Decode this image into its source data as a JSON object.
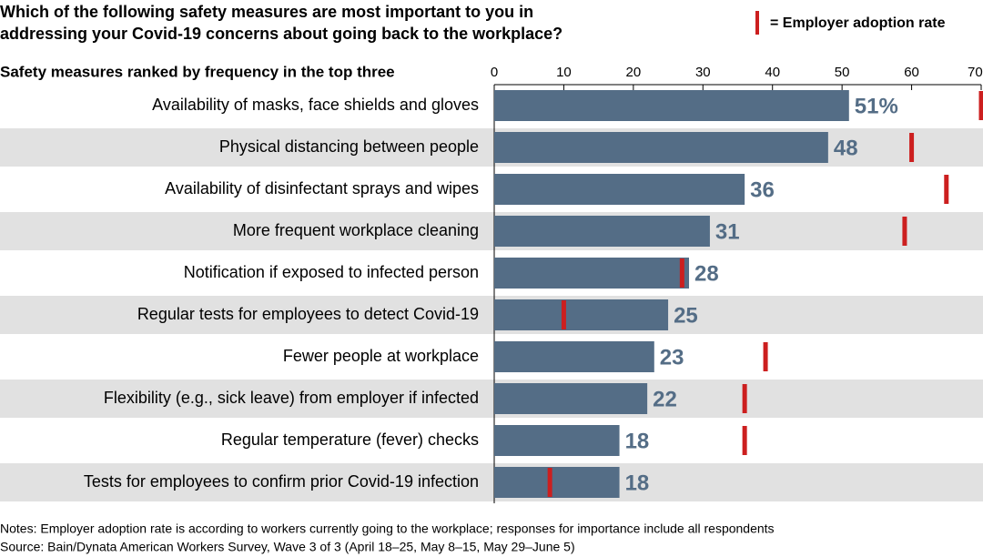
{
  "chart_data": {
    "type": "bar",
    "orientation": "horizontal",
    "title": [
      "Which of the following safety measures are most important to you in",
      "addressing your Covid-19 concerns about going back to the workplace?"
    ],
    "subtitle": "Safety measures ranked by frequency in the top three",
    "categories": [
      "Availability of masks, face shields and gloves",
      "Physical distancing between people",
      "Availability of disinfectant sprays and wipes",
      "More frequent workplace cleaning",
      "Notification if exposed to infected person",
      "Regular tests for employees to detect Covid-19",
      "Fewer people at workplace",
      "Flexibility (e.g., sick leave) from employer if infected",
      "Regular temperature (fever) checks",
      "Tests for employees to confirm prior Covid-19 infection"
    ],
    "series": [
      {
        "color": "#546d86",
        "values": [
          51,
          48,
          36,
          31,
          28,
          25,
          23,
          22,
          18,
          18
        ],
        "value_labels": [
          "51%",
          "48",
          "36",
          "31",
          "28",
          "25",
          "23",
          "22",
          "18",
          "18"
        ]
      },
      {
        "name": "= Employer adoption rate",
        "color": "#cc1f1f",
        "values": [
          70,
          60,
          65,
          59,
          27,
          10,
          39,
          36,
          36,
          8
        ]
      }
    ],
    "xlim": [
      0,
      70
    ],
    "xticks": [
      0,
      10,
      20,
      30,
      40,
      50,
      60,
      {
        "value": 70,
        "label": "70%"
      }
    ],
    "notes": [
      "Notes: Employer adoption rate is according to workers currently going to the workplace; responses for importance include all respondents",
      "Source: Bain/Dynata American Workers Survey, Wave 3 of 3 (April 18–25, May 8–15, May 29–June 5)"
    ]
  }
}
